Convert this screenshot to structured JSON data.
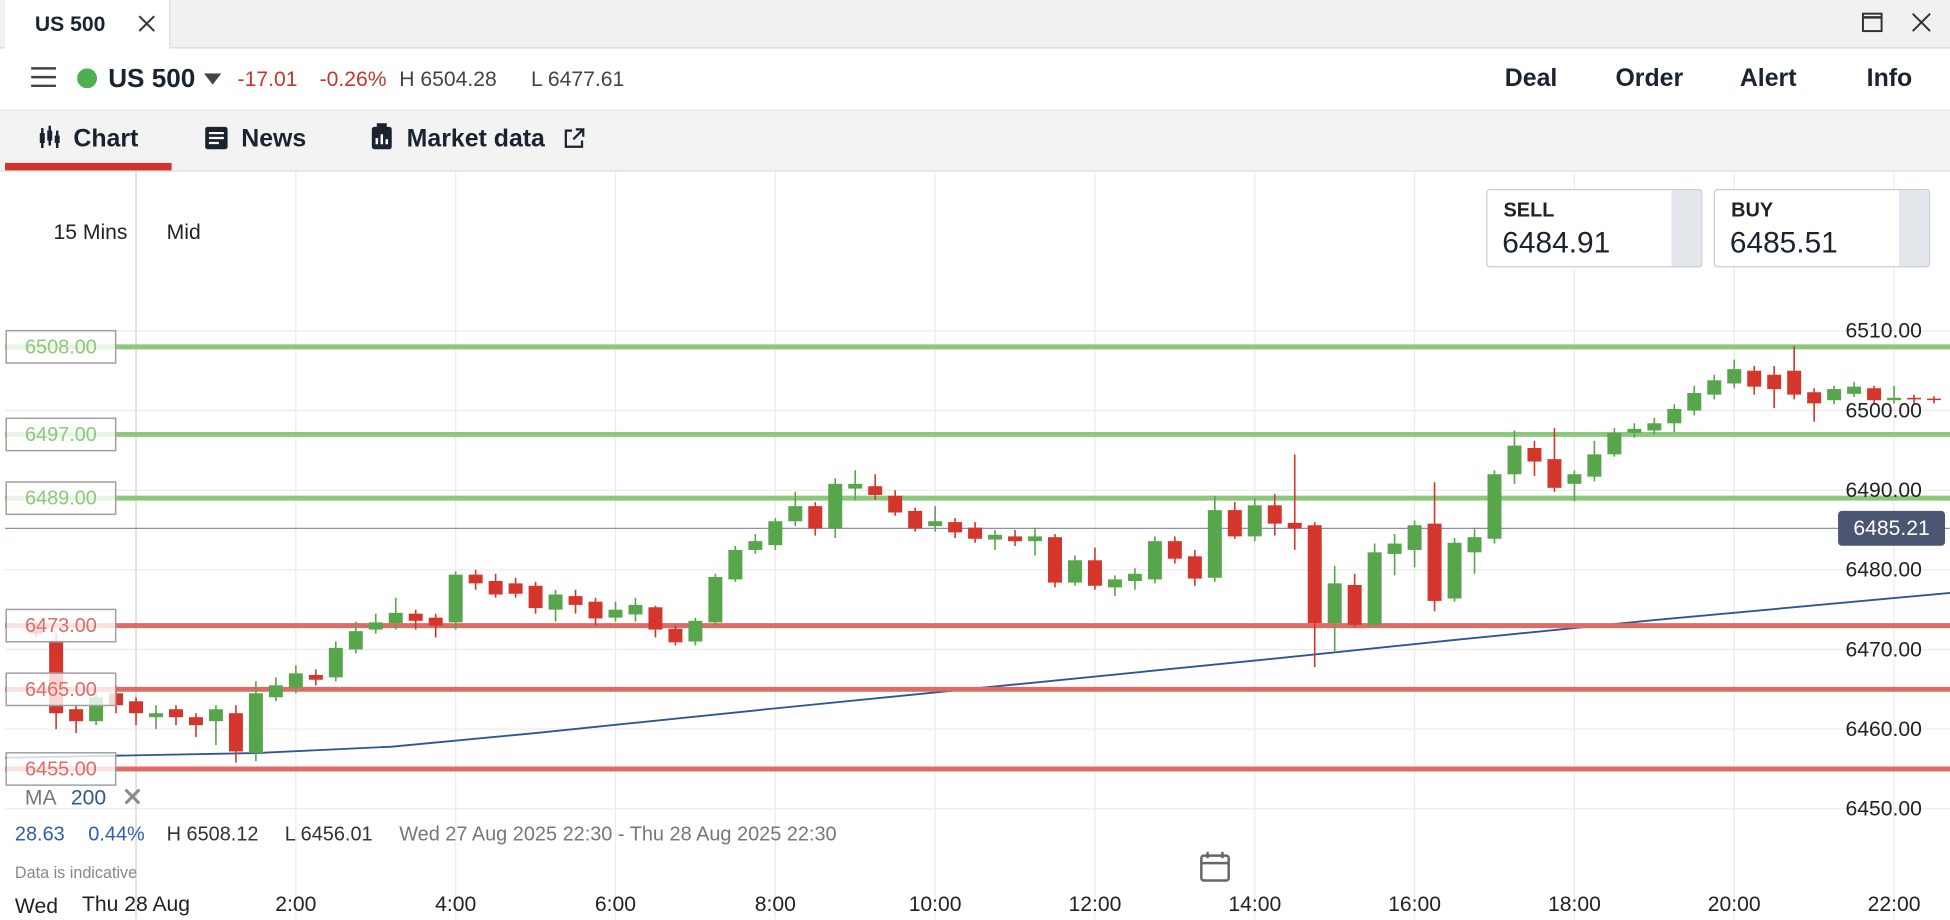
{
  "ui": {
    "tab": "US 500",
    "instrument": "US 500",
    "change": "-17.01",
    "change_pct": "-0.26%",
    "high": "H 6504.28",
    "low": "L 6477.61",
    "actions": [
      "Deal",
      "Order",
      "Alert",
      "Info"
    ],
    "tabs": [
      "Chart",
      "News",
      "Market data"
    ],
    "interval": "15 Mins",
    "price_type": "Mid",
    "sell": {
      "label": "SELL",
      "price": "6484.91"
    },
    "buy": {
      "label": "BUY",
      "price": "6485.51"
    },
    "stats": {
      "change": "28.63",
      "change_pct": "0.44%",
      "high": "H 6508.12",
      "low": "L 6456.01",
      "range": "Wed 27 Aug 2025 22:30 - Thu 28 Aug 2025 22:30"
    },
    "note": "Data is indicative",
    "prev_day": "Wed"
  },
  "chart_data": {
    "type": "candlestick",
    "up_color": "#57a64c",
    "down_color": "#d4362c",
    "xlim": [
      -1.64,
      22.7
    ],
    "xticks": [
      {
        "value": 0,
        "label": "Thu 28 Aug"
      },
      {
        "value": 2,
        "label": "2:00"
      },
      {
        "value": 4,
        "label": "4:00"
      },
      {
        "value": 6,
        "label": "6:00"
      },
      {
        "value": 8,
        "label": "8:00"
      },
      {
        "value": 10,
        "label": "10:00"
      },
      {
        "value": 12,
        "label": "12:00"
      },
      {
        "value": 14,
        "label": "14:00"
      },
      {
        "value": 16,
        "label": "16:00"
      },
      {
        "value": 18,
        "label": "18:00"
      },
      {
        "value": 20,
        "label": "20:00"
      },
      {
        "value": 22,
        "label": "22:00"
      }
    ],
    "ylim": [
      6436,
      6530
    ],
    "yticks": [
      {
        "value": 6450,
        "label": "6450.00"
      },
      {
        "value": 6460,
        "label": "6460.00"
      },
      {
        "value": 6470,
        "label": "6470.00"
      },
      {
        "value": 6480,
        "label": "6480.00"
      },
      {
        "value": 6490,
        "label": "6490.00"
      },
      {
        "value": 6500,
        "label": "6500.00"
      },
      {
        "value": 6510,
        "label": "6510.00"
      }
    ],
    "grid": true,
    "x": [
      -1.25,
      -1,
      -0.75,
      -0.5,
      -0.25,
      0,
      0.25,
      0.5,
      0.75,
      1,
      1.25,
      1.5,
      1.75,
      2,
      2.25,
      2.5,
      2.75,
      3,
      3.25,
      3.5,
      3.75,
      4,
      4.25,
      4.5,
      4.75,
      5,
      5.25,
      5.5,
      5.75,
      6,
      6.25,
      6.5,
      6.75,
      7,
      7.25,
      7.5,
      7.75,
      8,
      8.25,
      8.5,
      8.75,
      9,
      9.25,
      9.5,
      9.75,
      10,
      10.25,
      10.5,
      10.75,
      11,
      11.25,
      11.5,
      11.75,
      12,
      12.25,
      12.5,
      12.75,
      13,
      13.25,
      13.5,
      13.75,
      14,
      14.25,
      14.5,
      14.75,
      15,
      15.25,
      15.5,
      15.75,
      16,
      16.25,
      16.5,
      16.75,
      17,
      17.25,
      17.5,
      17.75,
      18,
      18.25,
      18.5,
      18.75,
      19,
      19.25,
      19.5,
      19.75,
      20,
      20.25,
      20.5,
      20.75,
      21,
      21.25,
      21.5,
      21.75,
      22,
      22.25,
      22.5
    ],
    "open": [
      6472.5,
      6471,
      6462.5,
      6461,
      6464.5,
      6463.5,
      6461.5,
      6462.5,
      6461.5,
      6461,
      6462,
      6457,
      6464,
      6465.2,
      6466.8,
      6466.5,
      6470,
      6472.5,
      6473.3,
      6474.5,
      6474,
      6473.4,
      6479.4,
      6478.6,
      6478.3,
      6478,
      6475,
      6476.7,
      6476,
      6474,
      6474.4,
      6475.3,
      6472.6,
      6471,
      6473.4,
      6478.8,
      6482.5,
      6483.1,
      6486.1,
      6488,
      6485.2,
      6490.2,
      6490.5,
      6489.3,
      6487.4,
      6485.5,
      6486,
      6485.3,
      6483.8,
      6484.2,
      6483.6,
      6484.1,
      6478.4,
      6481.2,
      6477.8,
      6478.6,
      6478.8,
      6483.6,
      6481.7,
      6479,
      6487.5,
      6484.2,
      6488.1,
      6485.9,
      6485.6,
      6473.3,
      6478.1,
      6473.1,
      6482,
      6482.5,
      6485.8,
      6476.4,
      6482.2,
      6483.9,
      6492,
      6495.3,
      6493.9,
      6490.8,
      6491.7,
      6494.5,
      6497.2,
      6497.5,
      6498.4,
      6500,
      6502,
      6503.4,
      6505,
      6504.5,
      6505,
      6502.3,
      6501.3,
      6502.1,
      6502.8,
      6501.3,
      6501.6,
      6501.5
    ],
    "high": [
      6473.5,
      6472,
      6463,
      6465,
      6465.5,
      6464,
      6463,
      6463,
      6462,
      6463,
      6463,
      6466,
      6466.5,
      6468,
      6467.5,
      6471,
      6473.5,
      6474.5,
      6476.5,
      6475,
      6474.5,
      6479.8,
      6480,
      6479.5,
      6479,
      6478.5,
      6477.5,
      6477.5,
      6476.5,
      6476,
      6476.5,
      6475.5,
      6473,
      6474,
      6479.5,
      6483,
      6484.5,
      6486.5,
      6489.8,
      6488.5,
      6491.5,
      6492.5,
      6492,
      6490,
      6487.8,
      6488,
      6486.5,
      6486,
      6485,
      6485,
      6485.3,
      6484.5,
      6481.8,
      6482.8,
      6479.3,
      6480.2,
      6484.2,
      6484.2,
      6482.5,
      6489.3,
      6488.5,
      6489,
      6489.5,
      6494.5,
      6486,
      6480.5,
      6479.5,
      6483.3,
      6484.5,
      6486.2,
      6491,
      6484,
      6485.3,
      6492.5,
      6497.5,
      6496.2,
      6497.8,
      6492.5,
      6496.2,
      6497.8,
      6498.4,
      6499.1,
      6500.8,
      6503.1,
      6504.5,
      6506.4,
      6505.6,
      6505.6,
      6508.1,
      6502.8,
      6503.1,
      6503.6,
      6503.1,
      6503.1,
      6502,
      6501.8
    ],
    "low": [
      6471.5,
      6460,
      6459.5,
      6460.5,
      6462,
      6460.5,
      6460,
      6460.5,
      6459,
      6458,
      6455.8,
      6456,
      6463.5,
      6464.5,
      6465.5,
      6466,
      6469.5,
      6472,
      6472.5,
      6472.5,
      6471.5,
      6472.5,
      6477.5,
      6476.5,
      6476.5,
      6474.5,
      6473.5,
      6474.5,
      6473,
      6473.5,
      6473.5,
      6471.5,
      6470.5,
      6470.5,
      6473,
      6478.5,
      6482,
      6482.5,
      6485.5,
      6484.3,
      6484,
      6488.7,
      6488.8,
      6486.8,
      6484.8,
      6484.8,
      6484,
      6483.4,
      6482.5,
      6483,
      6481.8,
      6477.8,
      6478,
      6477.5,
      6476.7,
      6477.5,
      6478.3,
      6480.8,
      6478,
      6478.5,
      6483.9,
      6483.6,
      6484.3,
      6482.5,
      6467.8,
      6469.8,
      6472.8,
      6472.8,
      6479.3,
      6480.3,
      6474.8,
      6476,
      6479.5,
      6483.3,
      6490.8,
      6491.8,
      6489.8,
      6488.6,
      6491.1,
      6494.2,
      6496.6,
      6497,
      6497.3,
      6499.4,
      6501.4,
      6502.8,
      6502,
      6500.3,
      6501.4,
      6498.6,
      6500.8,
      6501.7,
      6500.8,
      6500.9,
      6500.9,
      6500.9
    ],
    "close": [
      6472,
      6462,
      6461,
      6464,
      6463,
      6462,
      6462,
      6461.5,
      6460.5,
      6462.5,
      6457.2,
      6464.5,
      6465.5,
      6467,
      6466.2,
      6470.2,
      6472.3,
      6473.4,
      6474.6,
      6473.6,
      6473,
      6479.4,
      6478.3,
      6476.9,
      6477,
      6475.2,
      6476.9,
      6475.6,
      6473.9,
      6475,
      6475.6,
      6472.5,
      6470.9,
      6473.6,
      6479.1,
      6482.5,
      6483.6,
      6486.1,
      6488,
      6485.2,
      6490.8,
      6490.8,
      6489.4,
      6487.2,
      6485.2,
      6486.1,
      6484.7,
      6483.9,
      6484.4,
      6483.6,
      6484.2,
      6478.4,
      6481.2,
      6478,
      6478.8,
      6479.5,
      6483.6,
      6481.4,
      6478.9,
      6487.5,
      6484.2,
      6488.1,
      6485.8,
      6485.2,
      6473.3,
      6478.3,
      6473.1,
      6482.2,
      6483.3,
      6485.6,
      6476.1,
      6483.4,
      6484.1,
      6492,
      6495.6,
      6493.6,
      6490.3,
      6492,
      6494.5,
      6497.2,
      6497.7,
      6498.4,
      6500.2,
      6502.2,
      6503.8,
      6505.2,
      6503,
      6502.7,
      6502,
      6500.9,
      6502.7,
      6503,
      6501.3,
      6501.6,
      6501.4,
      6501.4
    ],
    "ma": {
      "label": "MA",
      "period": 200,
      "color": "#2e5597",
      "x": [
        -1.64,
        1.5,
        3.2,
        5,
        8,
        11,
        14,
        16.5,
        19,
        22.7
      ],
      "values": [
        6456.4,
        6457,
        6457.8,
        6459.5,
        6462.6,
        6465.6,
        6468.6,
        6471.2,
        6473.7,
        6477.1
      ]
    },
    "levels": [
      {
        "value": 6508,
        "label": "6508.00",
        "color": "#8cc87a"
      },
      {
        "value": 6497,
        "label": "6497.00",
        "color": "#8cc87a"
      },
      {
        "value": 6489,
        "label": "6489.00",
        "color": "#8cc87a"
      },
      {
        "value": 6473,
        "label": "6473.00",
        "color": "#e06a64"
      },
      {
        "value": 6465,
        "label": "6465.00",
        "color": "#e06a64"
      },
      {
        "value": 6455,
        "label": "6455.00",
        "color": "#e06a64"
      }
    ],
    "current": {
      "value": 6485.21,
      "label": "6485.21",
      "color": "#4b5672"
    }
  }
}
